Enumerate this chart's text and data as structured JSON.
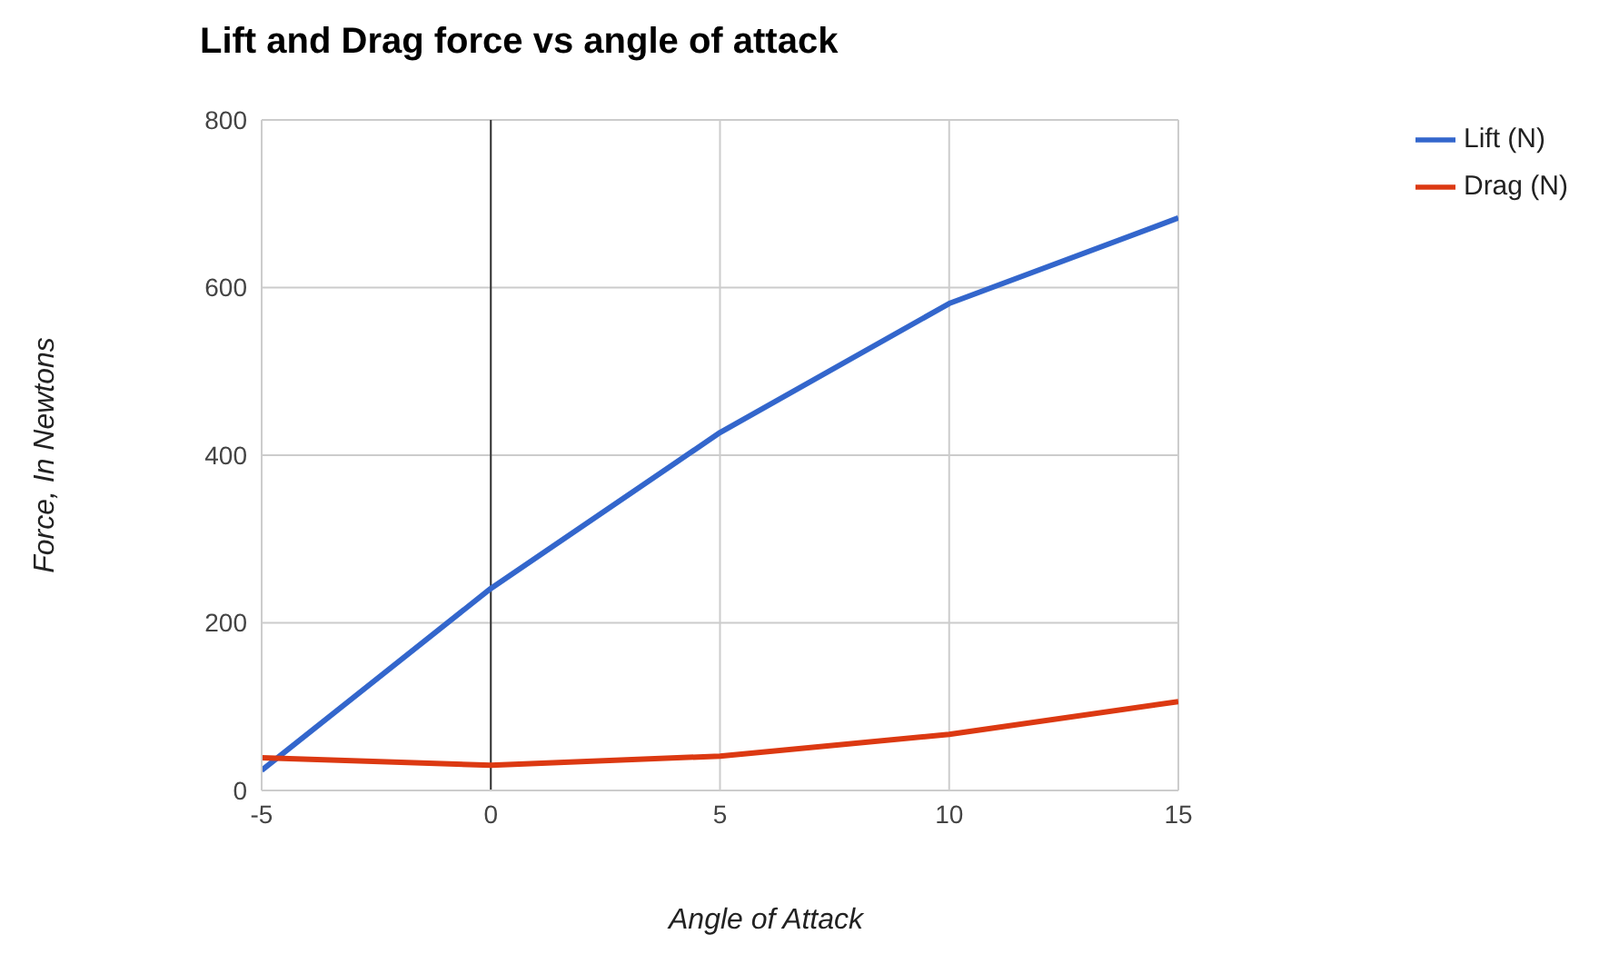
{
  "chart_data": {
    "type": "line",
    "title": "Lift and Drag force vs angle of attack",
    "xlabel": "Angle of Attack",
    "ylabel": "Force, In Newtons",
    "x": [
      -5,
      0,
      5,
      10,
      15
    ],
    "series": [
      {
        "name": "Lift (N)",
        "color": "#3366cc",
        "values": [
          24,
          241,
          427,
          581,
          683
        ]
      },
      {
        "name": "Drag (N)",
        "color": "#dc3912",
        "values": [
          39,
          30,
          41,
          67,
          106
        ]
      }
    ],
    "xlim": [
      -5,
      15
    ],
    "xticks": [
      -5,
      0,
      5,
      10,
      15
    ],
    "ylim": [
      0,
      800
    ],
    "yticks": [
      0,
      200,
      400,
      600,
      800
    ],
    "ref_lines": [
      {
        "axis": "x",
        "value": 0,
        "color": "#333333"
      }
    ],
    "grid": true,
    "legend": "top right",
    "marker": "none",
    "line_style": "solid"
  }
}
